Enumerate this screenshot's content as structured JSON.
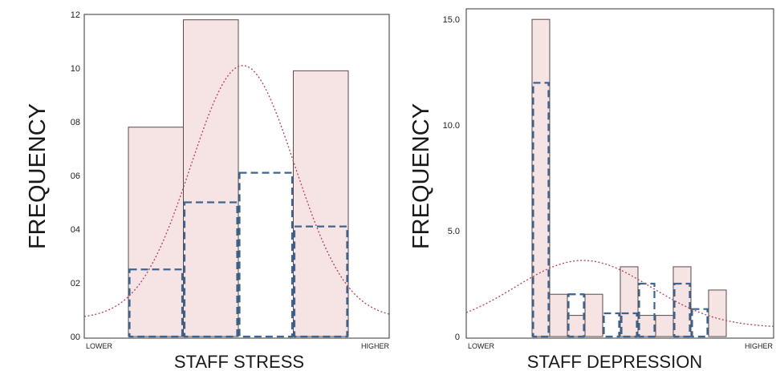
{
  "colors": {
    "bar_fill": "#f6e4e4",
    "bar_stroke": "#5a4a4a",
    "dashed_stroke": "#3b6592",
    "curve": "#b54b62",
    "axis": "#333333"
  },
  "chart_data": [
    {
      "type": "bar",
      "xlabel": "STAFF STRESS",
      "ylabel": "FREQUENCY",
      "x_end_labels": [
        "LOWER",
        "HIGHER"
      ],
      "ylim": [
        0,
        12
      ],
      "y_ticks": [
        "00",
        "02",
        "04",
        "06",
        "08",
        "10",
        "12"
      ],
      "grid": false,
      "series": [
        {
          "style": "filled bars",
          "values": [
            7.8,
            11.8,
            0,
            9.9
          ]
        },
        {
          "style": "dashed outline bars",
          "values": [
            2.5,
            5.0,
            6.1,
            4.1
          ]
        }
      ],
      "curve": {
        "style": "dotted normal curve",
        "peak": 10.1
      }
    },
    {
      "type": "bar",
      "xlabel": "STAFF DEPRESSION",
      "ylabel": "FREQUENCY",
      "x_end_labels": [
        "LOWER",
        "HIGHER"
      ],
      "ylim": [
        0,
        15.5
      ],
      "y_ticks": [
        "0",
        "5.0",
        "10.0",
        "15.0"
      ],
      "grid": false,
      "series": [
        {
          "style": "filled bars",
          "values": [
            15,
            2,
            1,
            2,
            0,
            3.3,
            1,
            1,
            3.3,
            0,
            2.2
          ]
        },
        {
          "style": "dashed outline bars",
          "values": [
            12,
            0,
            2,
            0,
            1.1,
            1.1,
            2.5,
            0,
            2.5,
            1.3,
            0
          ]
        }
      ],
      "curve": {
        "style": "dotted normal curve",
        "peak": 3.6
      }
    }
  ]
}
